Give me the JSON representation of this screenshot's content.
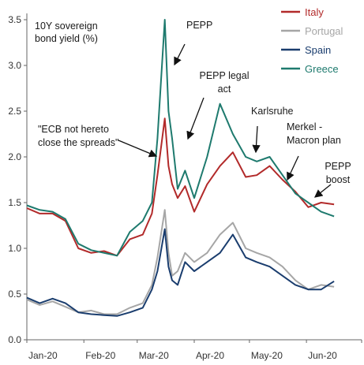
{
  "chart_data": {
    "type": "line",
    "ylabel_lines": [
      "10Y sovereign",
      "bond yield (%)"
    ],
    "ylim": [
      0,
      3.5
    ],
    "yticks": [
      "0.0",
      "0.5",
      "1.0",
      "1.5",
      "2.0",
      "2.5",
      "3.0",
      "3.5"
    ],
    "xticks": [
      "Jan-20",
      "Feb-20",
      "Mar-20",
      "Apr-20",
      "May-20",
      "Jun-20"
    ],
    "x": [
      "2020-01-01",
      "2020-01-08",
      "2020-01-15",
      "2020-01-22",
      "2020-01-29",
      "2020-02-05",
      "2020-02-12",
      "2020-02-19",
      "2020-02-26",
      "2020-03-04",
      "2020-03-09",
      "2020-03-12",
      "2020-03-16",
      "2020-03-18",
      "2020-03-20",
      "2020-03-23",
      "2020-03-27",
      "2020-04-01",
      "2020-04-08",
      "2020-04-15",
      "2020-04-22",
      "2020-04-29",
      "2020-05-05",
      "2020-05-12",
      "2020-05-19",
      "2020-05-26",
      "2020-06-02",
      "2020-06-09",
      "2020-06-16"
    ],
    "series": [
      {
        "name": "Italy",
        "color": "#b22a2a",
        "values": [
          1.44,
          1.38,
          1.38,
          1.3,
          1.0,
          0.95,
          0.97,
          0.92,
          1.1,
          1.15,
          1.38,
          1.8,
          2.42,
          1.9,
          1.7,
          1.55,
          1.68,
          1.4,
          1.7,
          1.9,
          2.05,
          1.78,
          1.8,
          1.9,
          1.75,
          1.62,
          1.45,
          1.5,
          1.48
        ]
      },
      {
        "name": "Portugal",
        "color": "#a6a6a6",
        "values": [
          0.44,
          0.38,
          0.42,
          0.36,
          0.3,
          0.32,
          0.28,
          0.28,
          0.35,
          0.4,
          0.6,
          0.9,
          1.42,
          0.95,
          0.7,
          0.75,
          0.95,
          0.85,
          0.95,
          1.15,
          1.28,
          1.0,
          0.95,
          0.9,
          0.8,
          0.65,
          0.55,
          0.6,
          0.58
        ]
      },
      {
        "name": "Spain",
        "color": "#1a3d6e",
        "values": [
          0.46,
          0.4,
          0.45,
          0.4,
          0.3,
          0.28,
          0.27,
          0.26,
          0.3,
          0.35,
          0.55,
          0.75,
          1.21,
          0.8,
          0.65,
          0.6,
          0.85,
          0.75,
          0.85,
          0.95,
          1.15,
          0.9,
          0.85,
          0.8,
          0.7,
          0.6,
          0.55,
          0.55,
          0.64
        ]
      },
      {
        "name": "Greece",
        "color": "#1e7a6e",
        "values": [
          1.47,
          1.42,
          1.4,
          1.32,
          1.05,
          0.98,
          0.95,
          0.92,
          1.18,
          1.3,
          1.5,
          2.2,
          3.5,
          2.5,
          2.2,
          1.65,
          1.85,
          1.55,
          2.0,
          2.58,
          2.25,
          2.0,
          1.95,
          2.0,
          1.8,
          1.6,
          1.5,
          1.4,
          1.35
        ]
      }
    ],
    "annotations": [
      {
        "lines": [
          "\"ECB not hereto",
          "close the spreads\""
        ]
      },
      {
        "lines": [
          "PEPP"
        ]
      },
      {
        "lines": [
          "PEPP legal",
          "act"
        ]
      },
      {
        "lines": [
          "Karlsruhe"
        ]
      },
      {
        "lines": [
          "Merkel -",
          "Macron plan"
        ]
      },
      {
        "lines": [
          "PEPP",
          "boost"
        ]
      }
    ],
    "legend": {
      "position": "top-right"
    }
  }
}
